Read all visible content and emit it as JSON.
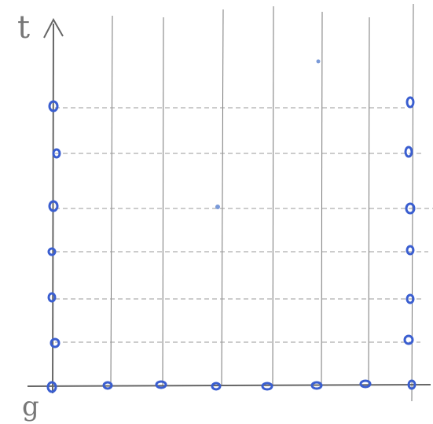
{
  "axes": {
    "y_label": "t",
    "x_label": "g"
  }
}
